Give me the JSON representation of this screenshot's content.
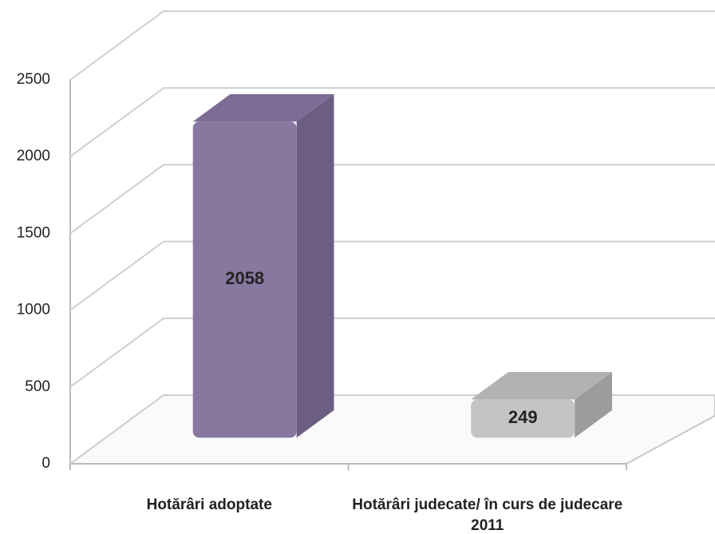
{
  "chart_data": {
    "type": "bar3d",
    "categories": [
      "Hotărâri adoptate",
      "Hotărâri judecate/ în curs de judecare 2011"
    ],
    "values": [
      2058,
      249
    ],
    "colors": [
      "#8878a0",
      "#c4c4c4"
    ],
    "ylim": [
      0,
      2500
    ],
    "yticks": [
      0,
      500,
      1000,
      1500,
      2000,
      2500
    ],
    "grid": true
  }
}
